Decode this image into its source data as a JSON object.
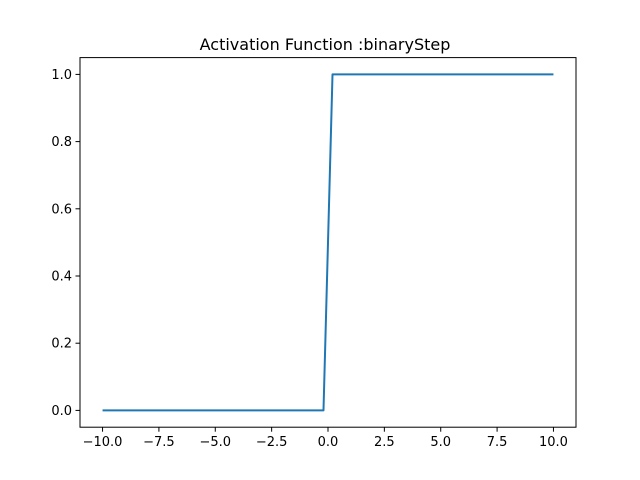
{
  "chart_data": {
    "type": "line",
    "title": "Activation Function :binaryStep",
    "xlabel": "",
    "ylabel": "",
    "xlim": [
      -11,
      11
    ],
    "ylim": [
      -0.05,
      1.05
    ],
    "grid": false,
    "x_ticks": [
      -10.0,
      -7.5,
      -5.0,
      -2.5,
      0.0,
      2.5,
      5.0,
      7.5,
      10.0
    ],
    "x_tick_labels": [
      "−10.0",
      "−7.5",
      "−5.0",
      "−2.5",
      "0.0",
      "2.5",
      "5.0",
      "7.5",
      "10.0"
    ],
    "y_ticks": [
      0.0,
      0.2,
      0.4,
      0.6,
      0.8,
      1.0
    ],
    "y_tick_labels": [
      "0.0",
      "0.2",
      "0.4",
      "0.6",
      "0.8",
      "1.0"
    ],
    "series": [
      {
        "color": "#1f77b4",
        "x": [
          -10.0,
          -0.2,
          0.2,
          10.0
        ],
        "y": [
          0.0,
          0.0,
          1.0,
          1.0
        ]
      }
    ]
  }
}
